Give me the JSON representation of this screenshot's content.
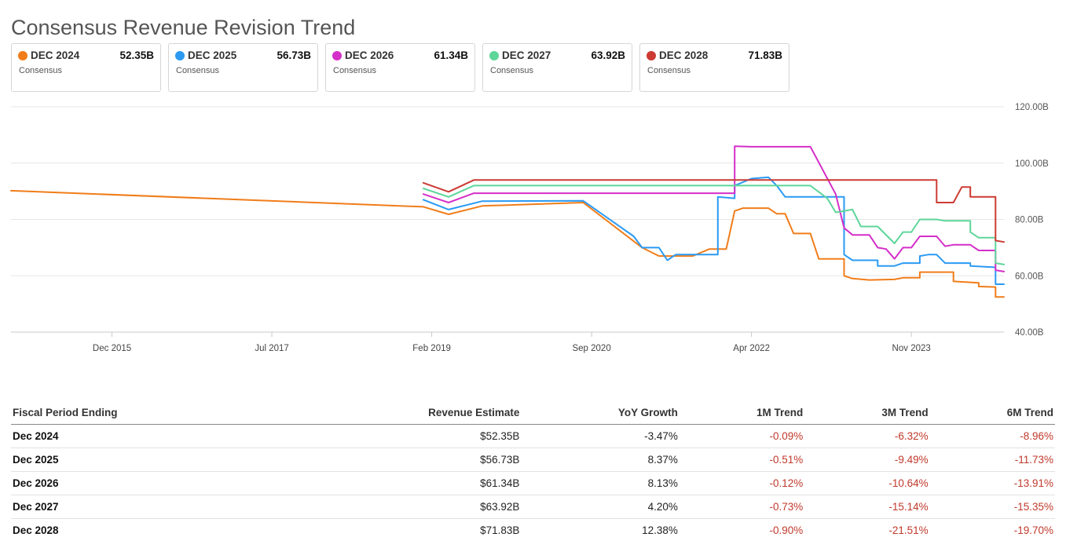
{
  "title": "Consensus Revenue Revision Trend",
  "legend": [
    {
      "name": "DEC 2024",
      "value": "52.35B",
      "sub": "Consensus",
      "color": "#f07d1a"
    },
    {
      "name": "DEC 2025",
      "value": "56.73B",
      "sub": "Consensus",
      "color": "#2b9af3"
    },
    {
      "name": "DEC 2026",
      "value": "61.34B",
      "sub": "Consensus",
      "color": "#d42fc9"
    },
    {
      "name": "DEC 2027",
      "value": "63.92B",
      "sub": "Consensus",
      "color": "#5ed69a"
    },
    {
      "name": "DEC 2028",
      "value": "71.83B",
      "sub": "Consensus",
      "color": "#cc3a33"
    }
  ],
  "chart_data": {
    "type": "line",
    "title": "",
    "xlabel": "",
    "ylabel": "",
    "ylim": [
      40,
      120
    ],
    "y_ticks": [
      "40.00B",
      "60.00B",
      "80.00B",
      "100.00B",
      "120.00B"
    ],
    "y_tick_values": [
      40,
      60,
      80,
      100,
      120
    ],
    "x_ticks": [
      "Dec 2015",
      "Jul 2017",
      "Feb 2019",
      "Sep 2020",
      "Apr 2022",
      "Nov 2023"
    ],
    "x_tick_values": [
      "2015-12",
      "2017-07",
      "2019-02",
      "2020-09",
      "2022-04",
      "2023-11"
    ],
    "xlim": [
      "2014-12",
      "2024-10"
    ],
    "y_axis_position": "right",
    "grid": "horizontal",
    "series": [
      {
        "name": "DEC 2024",
        "color": "#f07d1a",
        "points": [
          [
            "2014-12",
            90.2
          ],
          [
            "2019-01",
            84.5
          ],
          [
            "2019-04",
            81.8
          ],
          [
            "2019-08",
            84.8
          ],
          [
            "2020-08",
            86.0
          ],
          [
            "2021-03",
            70.0
          ],
          [
            "2021-05",
            67.0
          ],
          [
            "2021-09",
            67.0
          ],
          [
            "2021-11",
            69.5
          ],
          [
            "2022-01",
            69.5
          ],
          [
            "2022-02",
            83.0
          ],
          [
            "2022-03",
            84.0
          ],
          [
            "2022-06",
            84.0
          ],
          [
            "2022-07",
            82.0
          ],
          [
            "2022-08",
            82.0
          ],
          [
            "2022-09",
            75.0
          ],
          [
            "2022-11",
            75.0
          ],
          [
            "2022-12",
            66.0
          ],
          [
            "2023-03",
            66.0
          ],
          [
            "2023-03",
            60.0
          ],
          [
            "2023-04",
            59.0
          ],
          [
            "2023-06",
            58.5
          ],
          [
            "2023-09",
            58.7
          ],
          [
            "2023-10",
            59.3
          ],
          [
            "2023-12",
            59.3
          ],
          [
            "2023-12",
            61.3
          ],
          [
            "2024-04",
            61.3
          ],
          [
            "2024-04",
            58.0
          ],
          [
            "2024-07",
            57.5
          ],
          [
            "2024-07",
            56.2
          ],
          [
            "2024-09",
            56.0
          ],
          [
            "2024-09",
            52.5
          ],
          [
            "2024-10",
            52.5
          ]
        ]
      },
      {
        "name": "DEC 2025",
        "color": "#2b9af3",
        "points": [
          [
            "2019-01",
            87.0
          ],
          [
            "2019-04",
            83.5
          ],
          [
            "2019-08",
            86.5
          ],
          [
            "2020-08",
            86.6
          ],
          [
            "2021-02",
            74.0
          ],
          [
            "2021-03",
            70.0
          ],
          [
            "2021-05",
            70.0
          ],
          [
            "2021-06",
            65.5
          ],
          [
            "2021-07",
            67.5
          ],
          [
            "2021-12",
            67.5
          ],
          [
            "2021-12",
            88.0
          ],
          [
            "2022-02",
            87.5
          ],
          [
            "2022-02",
            92.0
          ],
          [
            "2022-04",
            94.5
          ],
          [
            "2022-06",
            95.0
          ],
          [
            "2022-07",
            92.0
          ],
          [
            "2022-08",
            88.0
          ],
          [
            "2023-03",
            88.0
          ],
          [
            "2023-03",
            67.5
          ],
          [
            "2023-04",
            65.5
          ],
          [
            "2023-07",
            65.5
          ],
          [
            "2023-07",
            63.5
          ],
          [
            "2023-09",
            63.5
          ],
          [
            "2023-10",
            64.5
          ],
          [
            "2023-12",
            64.5
          ],
          [
            "2023-12",
            67.0
          ],
          [
            "2024-01",
            67.5
          ],
          [
            "2024-02",
            67.5
          ],
          [
            "2024-03",
            64.5
          ],
          [
            "2024-06",
            64.5
          ],
          [
            "2024-06",
            63.5
          ],
          [
            "2024-09",
            63.0
          ],
          [
            "2024-09",
            57.0
          ],
          [
            "2024-10",
            57.0
          ]
        ]
      },
      {
        "name": "DEC 2026",
        "color": "#d42fc9",
        "points": [
          [
            "2019-01",
            89.0
          ],
          [
            "2019-04",
            86.0
          ],
          [
            "2019-07",
            89.3
          ],
          [
            "2022-02",
            89.3
          ],
          [
            "2022-02",
            106.0
          ],
          [
            "2022-04",
            105.8
          ],
          [
            "2022-11",
            105.8
          ],
          [
            "2023-02",
            89.0
          ],
          [
            "2023-03",
            77.0
          ],
          [
            "2023-04",
            74.5
          ],
          [
            "2023-06",
            74.5
          ],
          [
            "2023-07",
            70.0
          ],
          [
            "2023-08",
            69.5
          ],
          [
            "2023-09",
            66.0
          ],
          [
            "2023-10",
            70.0
          ],
          [
            "2023-11",
            70.0
          ],
          [
            "2023-12",
            74.0
          ],
          [
            "2024-02",
            74.0
          ],
          [
            "2024-03",
            70.5
          ],
          [
            "2024-04",
            71.0
          ],
          [
            "2024-06",
            71.0
          ],
          [
            "2024-07",
            69.0
          ],
          [
            "2024-09",
            69.0
          ],
          [
            "2024-09",
            62.0
          ],
          [
            "2024-10",
            61.5
          ]
        ]
      },
      {
        "name": "DEC 2027",
        "color": "#5ed69a",
        "points": [
          [
            "2019-01",
            91.0
          ],
          [
            "2019-04",
            88.0
          ],
          [
            "2019-07",
            92.0
          ],
          [
            "2022-11",
            92.0
          ],
          [
            "2023-01",
            87.5
          ],
          [
            "2023-02",
            82.5
          ],
          [
            "2023-04",
            83.5
          ],
          [
            "2023-05",
            77.5
          ],
          [
            "2023-07",
            77.5
          ],
          [
            "2023-09",
            71.5
          ],
          [
            "2023-10",
            75.5
          ],
          [
            "2023-11",
            75.5
          ],
          [
            "2023-12",
            80.0
          ],
          [
            "2024-02",
            80.0
          ],
          [
            "2024-03",
            79.5
          ],
          [
            "2024-06",
            79.5
          ],
          [
            "2024-06",
            75.5
          ],
          [
            "2024-07",
            73.5
          ],
          [
            "2024-09",
            73.5
          ],
          [
            "2024-09",
            64.5
          ],
          [
            "2024-10",
            64.0
          ]
        ]
      },
      {
        "name": "DEC 2028",
        "color": "#cc3a33",
        "points": [
          [
            "2019-01",
            93.0
          ],
          [
            "2019-04",
            89.8
          ],
          [
            "2019-07",
            94.0
          ],
          [
            "2024-02",
            94.0
          ],
          [
            "2024-02",
            86.0
          ],
          [
            "2024-04",
            86.0
          ],
          [
            "2024-05",
            91.5
          ],
          [
            "2024-06",
            91.5
          ],
          [
            "2024-06",
            88.0
          ],
          [
            "2024-09",
            88.0
          ],
          [
            "2024-09",
            72.5
          ],
          [
            "2024-10",
            72.0
          ]
        ]
      }
    ]
  },
  "table": {
    "headers": [
      "Fiscal Period Ending",
      "Revenue Estimate",
      "YoY Growth",
      "1M Trend",
      "3M Trend",
      "6M Trend"
    ],
    "rows": [
      [
        "Dec 2024",
        "$52.35B",
        "-3.47%",
        "-0.09%",
        "-6.32%",
        "-8.96%"
      ],
      [
        "Dec 2025",
        "$56.73B",
        "8.37%",
        "-0.51%",
        "-9.49%",
        "-11.73%"
      ],
      [
        "Dec 2026",
        "$61.34B",
        "8.13%",
        "-0.12%",
        "-10.64%",
        "-13.91%"
      ],
      [
        "Dec 2027",
        "$63.92B",
        "4.20%",
        "-0.73%",
        "-15.14%",
        "-15.35%"
      ],
      [
        "Dec 2028",
        "$71.83B",
        "12.38%",
        "-0.90%",
        "-21.51%",
        "-19.70%"
      ]
    ]
  }
}
